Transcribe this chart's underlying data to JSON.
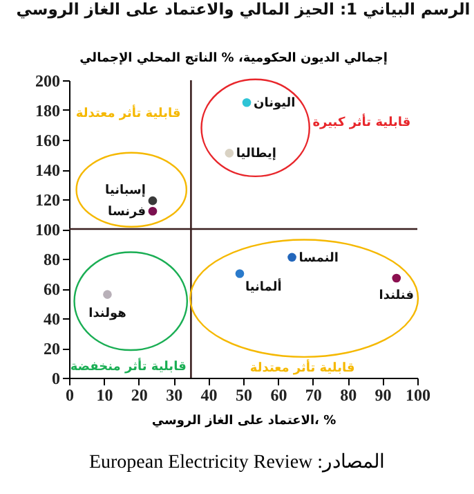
{
  "chart_data": {
    "type": "scatter",
    "title": "الرسم البياني 1: الحيز المالي والاعتماد على الغاز الروسي",
    "ylabel": "إجمالي الديون الحكومية، % الناتج المحلي الإجمالي",
    "xlabel": "الاعتماد على الغاز الروسي، %",
    "xlim": [
      0,
      100
    ],
    "xticks": [
      0,
      10,
      20,
      30,
      40,
      50,
      60,
      70,
      80,
      90,
      100
    ],
    "ylim": [
      0,
      200
    ],
    "yticks": [
      0,
      20,
      40,
      60,
      80,
      100,
      120,
      140,
      160,
      180,
      200
    ],
    "grid": false,
    "legend": false,
    "marker": "circle",
    "series": [
      {
        "name": "اليونان",
        "color": "#2ec4d6",
        "x": [
          51
        ],
        "values": [
          185
        ]
      },
      {
        "name": "إيطاليا",
        "color": "#d9d2c3",
        "x": [
          46
        ],
        "values": [
          151
        ]
      },
      {
        "name": "إسبانيا",
        "color": "#3a3a3a",
        "x": [
          24
        ],
        "values": [
          119
        ]
      },
      {
        "name": "فرنسا",
        "color": "#7b1050",
        "x": [
          24
        ],
        "values": [
          112
        ]
      },
      {
        "name": "هولندا",
        "color": "#b8b0b8",
        "x": [
          11
        ],
        "values": [
          56
        ]
      },
      {
        "name": "ألمانيا",
        "color": "#2a7acb",
        "x": [
          49
        ],
        "values": [
          70
        ]
      },
      {
        "name": "النمسا",
        "color": "#2266bb",
        "x": [
          64
        ],
        "values": [
          81
        ]
      },
      {
        "name": "فنلندا",
        "color": "#8b1050",
        "x": [
          94
        ],
        "values": [
          67
        ]
      }
    ],
    "ref_lines": [
      {
        "axis": "x",
        "value": 35
      },
      {
        "axis": "y",
        "value": 100
      }
    ],
    "annotations": [
      "قابلية تأثر معتدلة",
      "قابلية تأثر كبيرة",
      "قابلية تأثر منخفضة",
      "قابلية تأثر معتدلة",
      "المصادر: European Electricity Review"
    ]
  }
}
